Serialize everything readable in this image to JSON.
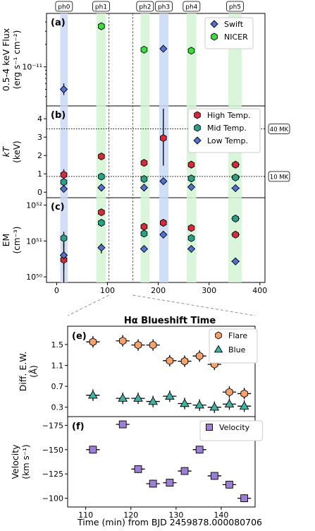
{
  "chart_data": [
    {
      "panel": "a",
      "type": "scatter",
      "panel_label": "(a)",
      "ylabel_line1": "0.5-4 keV Flux",
      "ylabel_line2": "(erg s⁻¹ cm⁻²)",
      "yscale": "log",
      "ylim": [
        3e-12,
        5.2e-11
      ],
      "xlim": [
        -20,
        410
      ],
      "y_tick_labels": [
        {
          "value": 1e-11,
          "label": "10⁻¹¹"
        }
      ],
      "phases": [
        {
          "name": "ph0",
          "x0": 7,
          "x1": 22,
          "color": "#c9d9f5"
        },
        {
          "name": "ph1",
          "x0": 78,
          "x1": 97,
          "color": "#d3f5d3"
        },
        {
          "name": "ph2",
          "x0": 165,
          "x1": 183,
          "color": "#d3f5d3"
        },
        {
          "name": "ph3",
          "x0": 202,
          "x1": 220,
          "color": "#c9d9f5"
        },
        {
          "name": "ph4",
          "x0": 256,
          "x1": 275,
          "color": "#d3f5d3"
        },
        {
          "name": "ph5",
          "x0": 338,
          "x1": 364,
          "color": "#d3f5d3"
        }
      ],
      "zoom_lines_x": [
        103,
        150
      ],
      "series": [
        {
          "name": "Swift",
          "marker": "diamond",
          "color": "#5472d3",
          "points": [
            {
              "x": 14,
              "y": 5e-12,
              "xerr": 6,
              "yerr_lo": 8e-13,
              "yerr_hi": 1e-12
            },
            {
              "x": 210,
              "y": 1.75e-11
            }
          ]
        },
        {
          "name": "NICER",
          "marker": "hexagon",
          "color": "#3fdc3f",
          "points": [
            {
              "x": 88,
              "y": 3.5e-11
            },
            {
              "x": 172,
              "y": 1.7e-11
            },
            {
              "x": 265,
              "y": 1.65e-11
            },
            {
              "x": 352,
              "y": 2.05e-11,
              "xerr": 8
            }
          ]
        }
      ]
    },
    {
      "panel": "b",
      "type": "scatter",
      "panel_label": "(b)",
      "ylabel_line1": "kT",
      "ylabel_line2": "(keV)",
      "ylim": [
        -0.3,
        4.7
      ],
      "xlim": [
        -20,
        410
      ],
      "y_ticks": [
        0,
        1,
        2,
        3,
        4
      ],
      "reference_lines": [
        {
          "y": 3.45,
          "label": "40 MK"
        },
        {
          "y": 0.86,
          "label": "10 MK"
        }
      ],
      "series": [
        {
          "name": "High Temp.",
          "marker": "hexagon",
          "color": "#d42c3c",
          "points": [
            {
              "x": 14,
              "y": 0.95,
              "xerr": 6,
              "yerr_lo": 0.3,
              "yerr_hi": 0.3
            },
            {
              "x": 88,
              "y": 1.95
            },
            {
              "x": 172,
              "y": 1.6
            },
            {
              "x": 210,
              "y": 2.95,
              "yerr_lo": 1.5,
              "yerr_hi": 1.6
            },
            {
              "x": 265,
              "y": 1.5
            },
            {
              "x": 352,
              "y": 1.5,
              "xerr": 8
            }
          ]
        },
        {
          "name": "Mid Temp.",
          "marker": "hexagon",
          "color": "#2aa189",
          "points": [
            {
              "x": 14,
              "y": 0.55,
              "xerr": 6
            },
            {
              "x": 88,
              "y": 0.85
            },
            {
              "x": 172,
              "y": 0.72
            },
            {
              "x": 265,
              "y": 0.75
            },
            {
              "x": 352,
              "y": 0.8,
              "xerr": 8
            }
          ]
        },
        {
          "name": "Low Temp.",
          "marker": "diamond",
          "color": "#5472d3",
          "points": [
            {
              "x": 14,
              "y": 0.18,
              "xerr": 6
            },
            {
              "x": 88,
              "y": 0.25
            },
            {
              "x": 172,
              "y": 0.25
            },
            {
              "x": 210,
              "y": 0.6
            },
            {
              "x": 265,
              "y": 0.28
            },
            {
              "x": 352,
              "y": 0.22,
              "xerr": 8
            }
          ]
        }
      ]
    },
    {
      "panel": "c",
      "type": "scatter",
      "panel_label": "(c)",
      "ylabel_line1": "EM",
      "ylabel_line2": "(cm⁻³)",
      "yscale": "log",
      "ylim": [
        7e+49,
        1.6e+52
      ],
      "xlim": [
        -20,
        410
      ],
      "xlabel_ticks": [
        0,
        100,
        200,
        300,
        400
      ],
      "y_tick_labels": [
        {
          "value": 1e+50,
          "label": "10⁵⁰"
        },
        {
          "value": 1e+51,
          "label": "10⁵¹"
        },
        {
          "value": 1e+52,
          "label": "10⁵²"
        }
      ],
      "series": [
        {
          "name": "High Temp.",
          "marker": "hexagon",
          "color": "#d42c3c",
          "points": [
            {
              "x": 14,
              "y": 3e+50,
              "xerr": 6,
              "yerr_lo": 2.3e+50,
              "yerr_hi": 5e+50
            },
            {
              "x": 88,
              "y": 6.3e+51
            },
            {
              "x": 172,
              "y": 2.5e+51
            },
            {
              "x": 210,
              "y": 3.2e+51
            },
            {
              "x": 265,
              "y": 2.3e+51
            },
            {
              "x": 352,
              "y": 1.5e+51,
              "xerr": 8
            }
          ]
        },
        {
          "name": "Mid Temp.",
          "marker": "hexagon",
          "color": "#2aa189",
          "points": [
            {
              "x": 14,
              "y": 1.2e+51,
              "xerr": 6,
              "yerr_lo": 5e+50,
              "yerr_hi": 6e+50
            },
            {
              "x": 88,
              "y": 3.2e+51
            },
            {
              "x": 172,
              "y": 1.6e+51
            },
            {
              "x": 265,
              "y": 1.2e+51
            },
            {
              "x": 352,
              "y": 4.2e+51,
              "xerr": 8
            }
          ]
        },
        {
          "name": "Low Temp.",
          "marker": "diamond",
          "color": "#5472d3",
          "points": [
            {
              "x": 14,
              "y": 4e+50,
              "xerr": 6,
              "yerr_lo": 2.5e+50,
              "yerr_hi": 8e+50
            },
            {
              "x": 88,
              "y": 6.5e+50,
              "yerr_lo": 2e+50,
              "yerr_hi": 2e+50
            },
            {
              "x": 172,
              "y": 6e+50
            },
            {
              "x": 210,
              "y": 1.5e+51
            },
            {
              "x": 265,
              "y": 6e+50
            },
            {
              "x": 352,
              "y": 2.7e+50,
              "xerr": 8
            }
          ]
        }
      ]
    },
    {
      "panel": "e",
      "type": "scatter",
      "title": "Hα Blueshift Time",
      "panel_label": "(e)",
      "ylabel_line1": "Diff. E.W.",
      "ylabel_line2": "(Å)",
      "ylim": [
        0.12,
        1.85
      ],
      "xlim": [
        106,
        147.5
      ],
      "y_ticks": [
        {
          "value": 0.3,
          "label": "0.3"
        },
        {
          "value": 0.7,
          "label": "0.7"
        },
        {
          "value": 1.1,
          "label": "1.1"
        },
        {
          "value": 1.5,
          "label": "1.5"
        }
      ],
      "series": [
        {
          "name": "Flare",
          "marker": "hexagon",
          "color": "#f7a26b",
          "points": [
            {
              "x": 111.6,
              "y": 1.55
            },
            {
              "x": 118.2,
              "y": 1.57
            },
            {
              "x": 121.6,
              "y": 1.49
            },
            {
              "x": 124.9,
              "y": 1.49
            },
            {
              "x": 128.6,
              "y": 1.19
            },
            {
              "x": 131.9,
              "y": 1.18
            },
            {
              "x": 135.2,
              "y": 1.28
            },
            {
              "x": 138.5,
              "y": 1.12
            },
            {
              "x": 141.8,
              "y": 0.59
            },
            {
              "x": 145.1,
              "y": 0.56
            }
          ],
          "xerr": 1.5,
          "yerr": 0.11
        },
        {
          "name": "Blue",
          "marker": "triangle",
          "color": "#3fb5a7",
          "points": [
            {
              "x": 111.6,
              "y": 0.53
            },
            {
              "x": 118.2,
              "y": 0.47
            },
            {
              "x": 121.6,
              "y": 0.47
            },
            {
              "x": 124.9,
              "y": 0.41
            },
            {
              "x": 128.6,
              "y": 0.51
            },
            {
              "x": 131.9,
              "y": 0.37
            },
            {
              "x": 135.2,
              "y": 0.34
            },
            {
              "x": 138.5,
              "y": 0.3
            },
            {
              "x": 141.8,
              "y": 0.36
            },
            {
              "x": 145.1,
              "y": 0.32
            }
          ],
          "xerr": 1.5,
          "yerr": 0.11
        }
      ]
    },
    {
      "panel": "f",
      "type": "scatter",
      "panel_label": "(f)",
      "ylabel_line1": "Velocity",
      "ylabel_line2": "(km s⁻¹)",
      "ylim": [
        -184,
        -91
      ],
      "y_inverted": true,
      "xlim": [
        106,
        147.5
      ],
      "y_ticks": [
        {
          "value": -175,
          "label": "−175"
        },
        {
          "value": -150,
          "label": "−150"
        },
        {
          "value": -125,
          "label": "−125"
        },
        {
          "value": -100,
          "label": "−100"
        }
      ],
      "x_ticks": [
        110,
        120,
        130,
        140
      ],
      "xlabel": "Time (min) from BJD 2459878.000080706",
      "series": [
        {
          "name": "Velocity",
          "marker": "square",
          "color": "#9b7fd4",
          "points": [
            {
              "x": 111.6,
              "y": -150
            },
            {
              "x": 118.2,
              "y": -176
            },
            {
              "x": 121.6,
              "y": -130
            },
            {
              "x": 124.9,
              "y": -115
            },
            {
              "x": 128.6,
              "y": -116
            },
            {
              "x": 131.9,
              "y": -128
            },
            {
              "x": 135.2,
              "y": -150
            },
            {
              "x": 138.5,
              "y": -123
            },
            {
              "x": 141.8,
              "y": -114
            },
            {
              "x": 145.1,
              "y": -100
            }
          ],
          "xerr": 1.5,
          "yerr": 4
        }
      ]
    }
  ]
}
